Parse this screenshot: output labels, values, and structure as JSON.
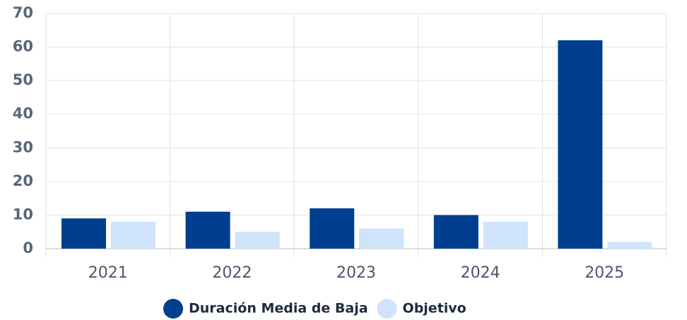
{
  "chart_data": {
    "type": "bar",
    "categories": [
      "2021",
      "2022",
      "2023",
      "2024",
      "2025"
    ],
    "series": [
      {
        "name": "Duración Media de Baja",
        "color": "#003f8f",
        "values": [
          9,
          11,
          12,
          10,
          62
        ]
      },
      {
        "name": "Objetivo",
        "color": "#cfe3fb",
        "values": [
          8,
          5,
          6,
          8,
          2
        ]
      }
    ],
    "ylim": [
      0,
      70
    ],
    "yticks": [
      0,
      10,
      20,
      30,
      40,
      50,
      60,
      70
    ],
    "grid": true,
    "legend": "bottom"
  }
}
